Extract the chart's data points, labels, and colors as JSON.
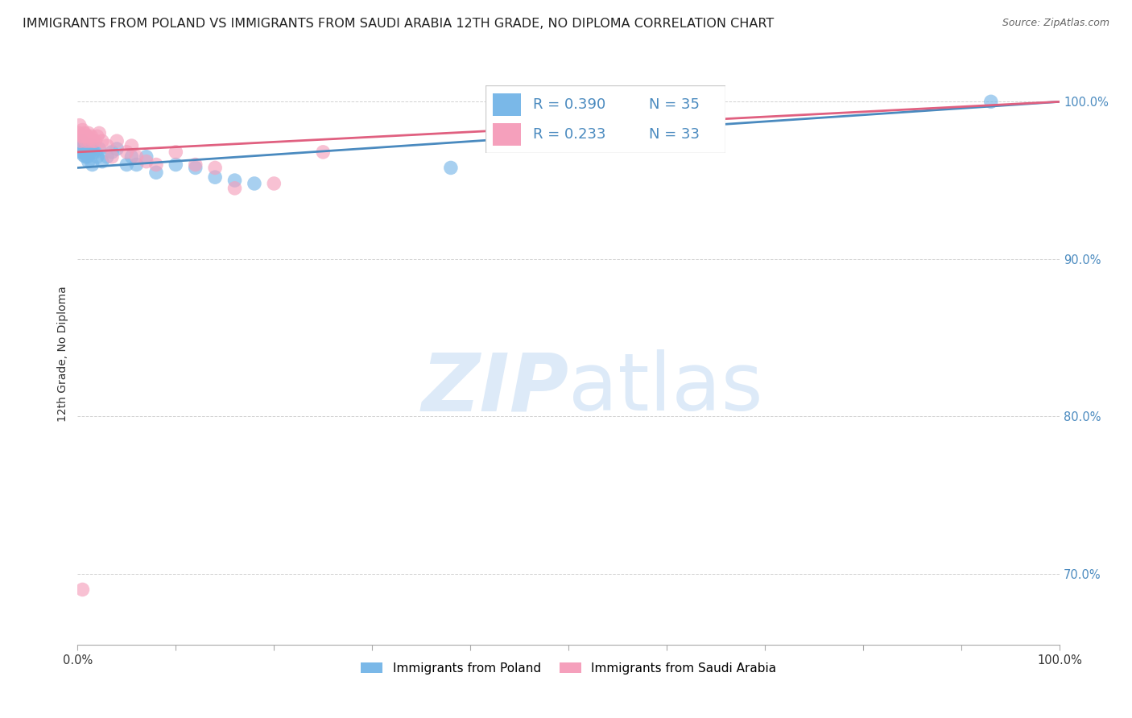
{
  "title": "IMMIGRANTS FROM POLAND VS IMMIGRANTS FROM SAUDI ARABIA 12TH GRADE, NO DIPLOMA CORRELATION CHART",
  "source_text": "Source: ZipAtlas.com",
  "ylabel": "12th Grade, No Diploma",
  "xlim": [
    0.0,
    1.0
  ],
  "ylim": [
    0.655,
    1.025
  ],
  "ytick_values": [
    0.7,
    0.8,
    0.9,
    1.0
  ],
  "xtick_values": [
    0.0,
    0.1,
    0.2,
    0.3,
    0.4,
    0.5,
    0.6,
    0.7,
    0.8,
    0.9,
    1.0
  ],
  "legend_labels": [
    "Immigrants from Poland",
    "Immigrants from Saudi Arabia"
  ],
  "blue_color": "#7ab8e8",
  "pink_color": "#f5a0bc",
  "blue_line_color": "#4a8abf",
  "pink_line_color": "#e06080",
  "watermark_zip": "ZIP",
  "watermark_atlas": "atlas",
  "watermark_color": "#ddeaf8",
  "poland_x": [
    0.001,
    0.002,
    0.003,
    0.004,
    0.005,
    0.006,
    0.007,
    0.008,
    0.009,
    0.01,
    0.011,
    0.012,
    0.013,
    0.014,
    0.015,
    0.016,
    0.018,
    0.02,
    0.022,
    0.025,
    0.03,
    0.035,
    0.04,
    0.05,
    0.055,
    0.06,
    0.07,
    0.08,
    0.1,
    0.12,
    0.14,
    0.16,
    0.18,
    0.38,
    0.93
  ],
  "poland_y": [
    0.97,
    0.972,
    0.968,
    0.975,
    0.968,
    0.966,
    0.972,
    0.965,
    0.968,
    0.965,
    0.962,
    0.97,
    0.968,
    0.972,
    0.96,
    0.968,
    0.968,
    0.965,
    0.97,
    0.962,
    0.965,
    0.968,
    0.97,
    0.96,
    0.965,
    0.96,
    0.965,
    0.955,
    0.96,
    0.958,
    0.952,
    0.95,
    0.948,
    0.958,
    1.0
  ],
  "saudi_x": [
    0.001,
    0.002,
    0.003,
    0.004,
    0.005,
    0.006,
    0.007,
    0.008,
    0.009,
    0.01,
    0.011,
    0.012,
    0.014,
    0.016,
    0.018,
    0.02,
    0.022,
    0.025,
    0.03,
    0.035,
    0.04,
    0.05,
    0.055,
    0.06,
    0.07,
    0.08,
    0.1,
    0.12,
    0.14,
    0.16,
    0.2,
    0.25,
    0.005
  ],
  "saudi_y": [
    0.98,
    0.985,
    0.975,
    0.978,
    0.982,
    0.978,
    0.98,
    0.975,
    0.978,
    0.978,
    0.98,
    0.975,
    0.978,
    0.975,
    0.975,
    0.978,
    0.98,
    0.975,
    0.972,
    0.965,
    0.975,
    0.968,
    0.972,
    0.965,
    0.962,
    0.96,
    0.968,
    0.96,
    0.958,
    0.945,
    0.948,
    0.968,
    0.69
  ],
  "background_color": "#ffffff",
  "grid_color": "#cccccc",
  "title_fontsize": 11.5,
  "axis_label_fontsize": 10,
  "tick_fontsize": 10.5
}
